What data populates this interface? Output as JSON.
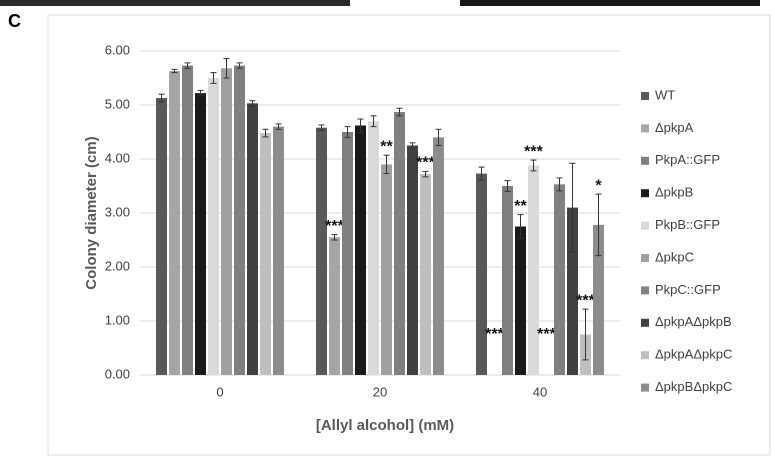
{
  "chart_data": {
    "type": "bar",
    "panel_label": "C",
    "y_label": "Colony diameter (cm)",
    "x_label": "[Allyl alcohol] (mM)",
    "categories": [
      "0",
      "20",
      "40"
    ],
    "ylim": [
      0,
      6
    ],
    "yticks": [
      {
        "value": 0,
        "label": "0.00"
      },
      {
        "value": 1,
        "label": "1.00"
      },
      {
        "value": 2,
        "label": "2.00"
      },
      {
        "value": 3,
        "label": "3.00"
      },
      {
        "value": 4,
        "label": "4.00"
      },
      {
        "value": 5,
        "label": "5.00"
      },
      {
        "value": 6,
        "label": "6.00"
      }
    ],
    "grid": true,
    "legend": "right",
    "series": [
      {
        "name": "WT",
        "color": "#595959",
        "values": [
          5.13,
          4.58,
          3.73
        ],
        "errors": [
          0.07,
          0.05,
          0.12
        ],
        "stars": [
          null,
          null,
          null
        ]
      },
      {
        "name": "ΔpkpA",
        "color": "#a6a6a6",
        "values": [
          5.63,
          2.55,
          0
        ],
        "errors": [
          0.03,
          0.05,
          0
        ],
        "stars": [
          null,
          "***",
          "***"
        ]
      },
      {
        "name": "PkpA::GFP",
        "color": "#7f7f7f",
        "values": [
          5.73,
          4.5,
          3.5
        ],
        "errors": [
          0.05,
          0.1,
          0.1
        ],
        "stars": [
          null,
          null,
          null
        ]
      },
      {
        "name": "ΔpkpB",
        "color": "#1a1a1a",
        "values": [
          5.22,
          4.62,
          2.75
        ],
        "errors": [
          0.05,
          0.12,
          0.22
        ],
        "stars": [
          null,
          null,
          "**"
        ]
      },
      {
        "name": "PkpB::GFP",
        "color": "#d9d9d9",
        "values": [
          5.5,
          4.7,
          3.88
        ],
        "errors": [
          0.1,
          0.1,
          0.1
        ],
        "stars": [
          null,
          null,
          "***"
        ]
      },
      {
        "name": "ΔpkpC",
        "color": "#a0a0a0",
        "values": [
          5.68,
          3.9,
          0
        ],
        "errors": [
          0.18,
          0.17,
          0
        ],
        "stars": [
          null,
          "**",
          "***"
        ]
      },
      {
        "name": "PkpC::GFP",
        "color": "#808080",
        "values": [
          5.73,
          4.87,
          3.53
        ],
        "errors": [
          0.05,
          0.07,
          0.12
        ],
        "stars": [
          null,
          null,
          null
        ]
      },
      {
        "name": "ΔpkpAΔpkpB",
        "color": "#404040",
        "values": [
          5.03,
          4.25,
          3.1
        ],
        "errors": [
          0.05,
          0.05,
          0.82
        ],
        "stars": [
          null,
          null,
          null
        ]
      },
      {
        "name": "ΔpkpAΔpkpC",
        "color": "#bfbfbf",
        "values": [
          4.48,
          3.72,
          0.75
        ],
        "errors": [
          0.07,
          0.05,
          0.47
        ],
        "stars": [
          null,
          "***",
          "***"
        ]
      },
      {
        "name": "ΔpkpBΔpkpC",
        "color": "#8c8c8c",
        "values": [
          4.6,
          4.4,
          2.78
        ],
        "errors": [
          0.05,
          0.15,
          0.57
        ],
        "stars": [
          null,
          null,
          "*"
        ]
      }
    ]
  }
}
